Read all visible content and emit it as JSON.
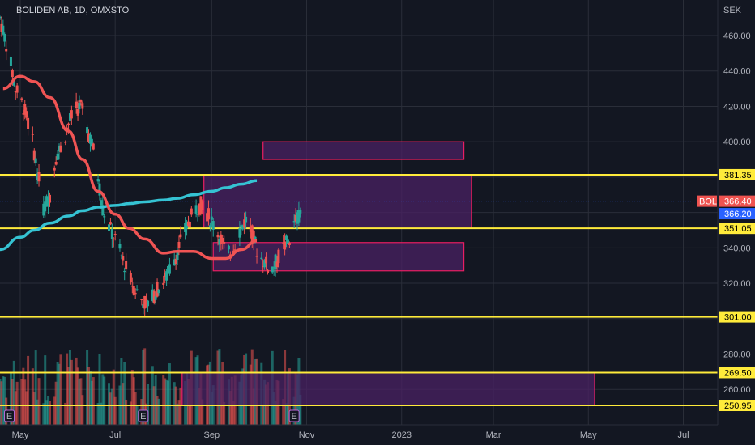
{
  "header": {
    "title": "BOLIDEN AB, 1D, OMXSTO"
  },
  "price_axis": {
    "currency": "SEK",
    "ticks": [
      "460.00",
      "440.00",
      "420.00",
      "400.00",
      "380.00",
      "360.00",
      "340.00",
      "320.00",
      "300.00",
      "280.00",
      "260.00"
    ]
  },
  "time_axis": {
    "labels": [
      "May",
      "Jul",
      "Sep",
      "Nov",
      "2023",
      "Mar",
      "May",
      "Jul"
    ]
  },
  "levels": [
    {
      "label": "381.35",
      "value": 381.35
    },
    {
      "label": "351.05",
      "value": 351.05
    },
    {
      "label": "301.00",
      "value": 301.0
    },
    {
      "label": "269.50",
      "value": 269.5
    },
    {
      "label": "250.95",
      "value": 250.95
    }
  ],
  "last_price": {
    "symbol": "BOL",
    "label": "366.40",
    "value": 366.4
  },
  "ma_price": {
    "label": "366.20",
    "value": 366.2
  },
  "event_markers": [
    "E",
    "E",
    "E",
    "E"
  ],
  "colors": {
    "background": "#131722",
    "grid": "#2a2e39",
    "level": "#ffeb3b",
    "zone_fill": "#4a2163",
    "zone_border": "#e91e63",
    "ma_fast": "#f05454",
    "ma_slow": "#35c3d3",
    "up": "#26a69a",
    "down": "#ef5350",
    "last_line": "#2962ff"
  },
  "chart_data": {
    "type": "candlestick",
    "title": "BOLIDEN AB, 1D, OMXSTO",
    "y_unit": "SEK",
    "ylim": [
      245,
      475
    ],
    "x_range": [
      "2022-04-18",
      "2023-07-20"
    ],
    "grid": true,
    "moving_average_fast": {
      "x": [
        "2022-04-20",
        "2022-05-01",
        "2022-05-10",
        "2022-05-20",
        "2022-06-01",
        "2022-06-10",
        "2022-06-20",
        "2022-07-01",
        "2022-07-10",
        "2022-07-20",
        "2022-08-01",
        "2022-08-10",
        "2022-08-20",
        "2022-09-01",
        "2022-09-10",
        "2022-09-20",
        "2022-09-30"
      ],
      "y": [
        430,
        437,
        434,
        425,
        406,
        390,
        372,
        359,
        351,
        345,
        337,
        338,
        338,
        334,
        334,
        339,
        344
      ]
    },
    "moving_average_slow": {
      "x": [
        "2022-04-18",
        "2022-05-01",
        "2022-05-10",
        "2022-05-20",
        "2022-06-01",
        "2022-06-10",
        "2022-06-20",
        "2022-07-01",
        "2022-07-10",
        "2022-07-20",
        "2022-08-01",
        "2022-08-10",
        "2022-08-20",
        "2022-09-01",
        "2022-09-10",
        "2022-09-20",
        "2022-09-30"
      ],
      "y": [
        339,
        346,
        350,
        354,
        358,
        361,
        363,
        364,
        365,
        366,
        367,
        368,
        370,
        372,
        374,
        376,
        378
      ]
    },
    "zones": [
      {
        "x": [
          "2022-08-27",
          "2023-02-15"
        ],
        "y": [
          351.05,
          381.35
        ]
      },
      {
        "x": [
          "2022-10-04",
          "2023-02-10"
        ],
        "y": [
          390,
          400
        ]
      },
      {
        "x": [
          "2022-09-02",
          "2023-02-10"
        ],
        "y": [
          327,
          343
        ]
      },
      {
        "x": [
          "2022-08-13",
          "2023-05-05"
        ],
        "y": [
          250.95,
          269.5
        ]
      }
    ],
    "volume_scale_max": 1
  }
}
